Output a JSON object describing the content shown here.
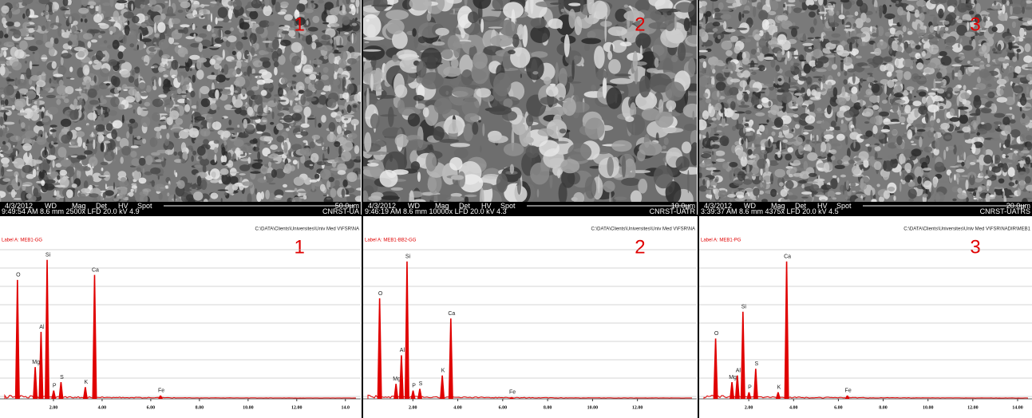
{
  "panels": [
    {
      "sem": {
        "number": "1",
        "bar_top": [
          "4/3/2012",
          "WD",
          "Mag",
          "Det",
          "HV",
          "Spot"
        ],
        "scale": "50.0µm",
        "bar_bottom": "9:49:54 AM 8.6 mm 2500x LFD 20.0 kV 4.9",
        "lab": "CNRST-UA"
      },
      "eds": {
        "path": "C:\\DATA\\Clients\\Universites\\Univ Med V\\FSR\\NA",
        "label": "Label A: MEB1-GG",
        "number": "1",
        "xlim": [
          0,
          14.5
        ],
        "ylim": [
          0,
          100
        ],
        "xticks": [
          {
            "value": 2,
            "label": "2.00"
          },
          {
            "value": 4,
            "label": "4.00"
          },
          {
            "value": 6,
            "label": "6.00"
          },
          {
            "value": 8,
            "label": "8.00"
          },
          {
            "value": 10,
            "label": "10.00"
          },
          {
            "value": 12,
            "label": "12.00"
          },
          {
            "value": 14,
            "label": "14.0"
          }
        ],
        "peaks": [
          {
            "label": "O",
            "energy": 0.52,
            "height": 71
          },
          {
            "label": "Mg",
            "energy": 1.25,
            "height": 19
          },
          {
            "label": "Al",
            "energy": 1.49,
            "height": 40
          },
          {
            "label": "Si",
            "energy": 1.74,
            "height": 83
          },
          {
            "label": "P",
            "energy": 2.01,
            "height": 5
          },
          {
            "label": "S",
            "energy": 2.31,
            "height": 10
          },
          {
            "label": "K",
            "energy": 3.31,
            "height": 7
          },
          {
            "label": "Ca",
            "energy": 3.69,
            "height": 74
          },
          {
            "label": "Fe",
            "energy": 6.4,
            "height": 2
          }
        ]
      }
    },
    {
      "sem": {
        "number": "2",
        "bar_top": [
          "4/3/2012",
          "WD",
          "Mag",
          "Det",
          "HV",
          "Spot"
        ],
        "scale": "10.0µm",
        "bar_bottom": "9:46:19 AM 8.6 mm 10000x LFD 20.0 kV 4.3",
        "lab": "CNRST-UATR"
      },
      "eds": {
        "path": "C:\\DATA\\Clients\\Universites\\Univ Med V\\FSR\\NA",
        "label": "Label A: MEB1-BB2-GG",
        "number": "2",
        "xlim": [
          0,
          14.5
        ],
        "ylim": [
          0,
          100
        ],
        "xticks": [
          {
            "value": 2,
            "label": "2.00"
          },
          {
            "value": 4,
            "label": "4.00"
          },
          {
            "value": 6,
            "label": "6.00"
          },
          {
            "value": 8,
            "label": "8.00"
          },
          {
            "value": 10,
            "label": "10.00"
          },
          {
            "value": 12,
            "label": "12.00"
          }
        ],
        "peaks": [
          {
            "label": "O",
            "energy": 0.52,
            "height": 60
          },
          {
            "label": "Mg",
            "energy": 1.25,
            "height": 9
          },
          {
            "label": "Al",
            "energy": 1.49,
            "height": 26
          },
          {
            "label": "Si",
            "energy": 1.74,
            "height": 82
          },
          {
            "label": "P",
            "energy": 2.01,
            "height": 5
          },
          {
            "label": "S",
            "energy": 2.31,
            "height": 6
          },
          {
            "label": "K",
            "energy": 3.31,
            "height": 14
          },
          {
            "label": "Ca",
            "energy": 3.69,
            "height": 48
          },
          {
            "label": "Fe",
            "energy": 6.4,
            "height": 1
          }
        ]
      }
    },
    {
      "sem": {
        "number": "3",
        "bar_top": [
          "4/3/2012",
          "WD",
          "Mag",
          "Det",
          "HV",
          "Spot"
        ],
        "scale": "20.0µm",
        "bar_bottom": "3:39:37 AM 8.6 mm 4375x LFD 20.0 kV 4.5",
        "lab": "CNRST-UATRS"
      },
      "eds": {
        "path": "C:\\DATA\\Clients\\Universites\\Univ Med V\\FSR\\NADIR\\MEB1",
        "label": "Label A: MEB1-PG",
        "number": "3",
        "xlim": [
          0,
          14.5
        ],
        "ylim": [
          0,
          100
        ],
        "xticks": [
          {
            "value": 2,
            "label": "2.00"
          },
          {
            "value": 4,
            "label": "4.00"
          },
          {
            "value": 6,
            "label": "6.00"
          },
          {
            "value": 8,
            "label": "8.00"
          },
          {
            "value": 10,
            "label": "10.00"
          },
          {
            "value": 12,
            "label": "12.00"
          },
          {
            "value": 14,
            "label": "14.00"
          }
        ],
        "peaks": [
          {
            "label": "O",
            "energy": 0.52,
            "height": 36
          },
          {
            "label": "Mg",
            "energy": 1.25,
            "height": 10
          },
          {
            "label": "Al",
            "energy": 1.49,
            "height": 14
          },
          {
            "label": "Si",
            "energy": 1.74,
            "height": 52
          },
          {
            "label": "P",
            "energy": 2.01,
            "height": 4
          },
          {
            "label": "S",
            "energy": 2.31,
            "height": 18
          },
          {
            "label": "K",
            "energy": 3.31,
            "height": 4
          },
          {
            "label": "Ca",
            "energy": 3.69,
            "height": 82
          },
          {
            "label": "Fe",
            "energy": 6.4,
            "height": 2
          }
        ]
      }
    }
  ]
}
